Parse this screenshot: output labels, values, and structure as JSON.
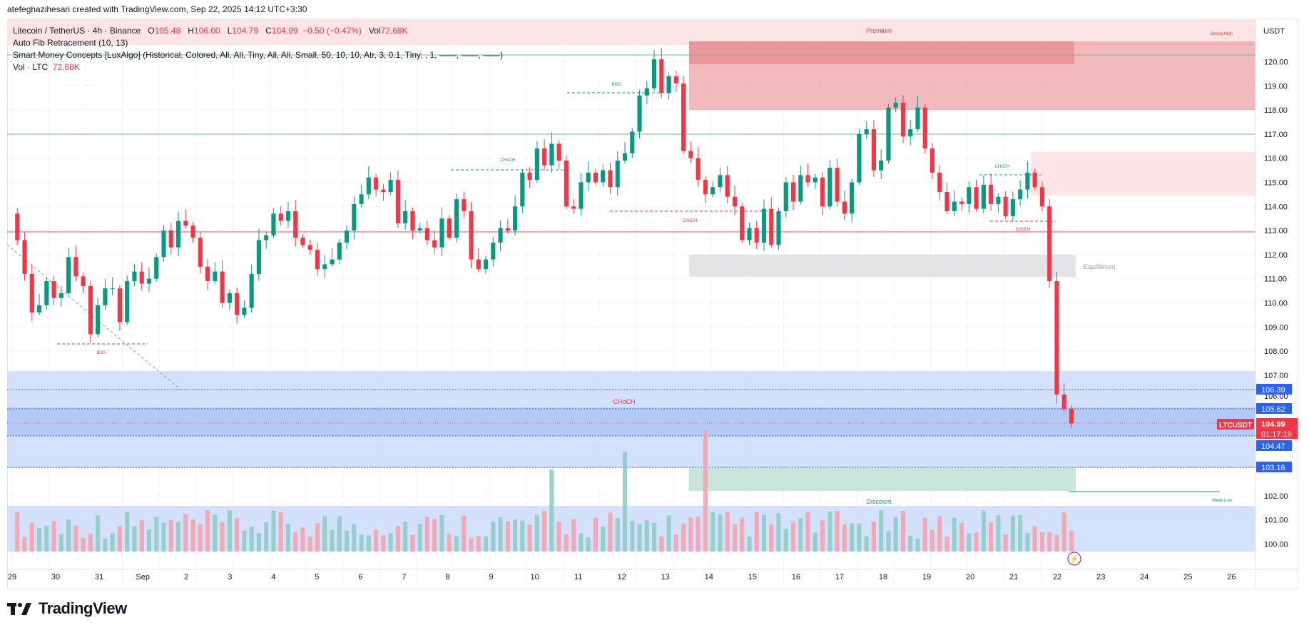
{
  "credit": "atefeghazihesari created with TradingView.com, Sep 22, 2025 14:12 UTC+3:30",
  "legend": {
    "symbol": "Litecoin / TetherUS · 4h · Binance",
    "o_label": "O",
    "o": "105.48",
    "h_label": "H",
    "h": "106.00",
    "l_label": "L",
    "l": "104.79",
    "c_label": "C",
    "c": "104.99",
    "change": "−0.50 (−0.47%)",
    "vol_label": "Vol",
    "vol": "72.68K",
    "indicator_fib": "Auto Fib Retracement (10, 13)",
    "indicator_smc": "Smart Money Concepts [LuxAlgo] (Historical, Colored, All, All, Tiny, All, All, Small, 50, 10, 10, Atr, 3, 0.1, Tiny, , 1, ——, ——, ——)",
    "vol_ltc_label": "Vol · LTC",
    "vol_ltc_value": "72.68K"
  },
  "currency": "USDT",
  "footer_brand": "TradingView",
  "colors": {
    "up": "#089981",
    "down": "#f23645",
    "vol_up": "#8fcdc4",
    "vol_down": "#f5a3ab",
    "premium_zone": "#fde5e6",
    "premium_block": "#ec9ca1",
    "discount_zone": "#c8e6dc",
    "equilibrium": "#e3e3e5",
    "blue_zone": "#cddcfb",
    "blue_dark": "#adc4f5",
    "green_line": "#6fbf73",
    "red_line": "#e14c4c",
    "axis_label_blue": "#2962ff",
    "price_tag": "#f23645"
  },
  "annotations": {
    "premium": "Premium",
    "strong_high": "Strong High",
    "equilibrium": "Equilibrium",
    "discount": "Discount",
    "weak_low": "Weak Low",
    "choch_big": "CHoCH",
    "bos_1": "BOS",
    "bos_2": "BOS",
    "choch_1": "CHoCH",
    "choch_2": "CHoCH",
    "choch_3": "CHoCH",
    "choch_4": "CHoCH"
  },
  "price_axis": {
    "ticks": [
      "120.00",
      "119.00",
      "118.00",
      "117.00",
      "116.00",
      "115.00",
      "114.00",
      "113.00",
      "112.00",
      "111.00",
      "110.00",
      "109.00",
      "108.00",
      "107.00",
      "106.00",
      "102.00",
      "101.00",
      "100.00"
    ],
    "tags": [
      {
        "label": "106.39",
        "kind": "blue"
      },
      {
        "label": "105.62",
        "kind": "blue"
      },
      {
        "label": "104.47",
        "kind": "blue"
      },
      {
        "label": "103.16",
        "kind": "blue"
      }
    ],
    "current": {
      "symbol": "LTCUSDT",
      "price": "104.99",
      "countdown": "01:17:19"
    }
  },
  "time_axis": {
    "ticks": [
      "29",
      "30",
      "31",
      "Sep",
      "2",
      "3",
      "4",
      "5",
      "6",
      "7",
      "8",
      "9",
      "10",
      "11",
      "12",
      "13",
      "14",
      "15",
      "16",
      "17",
      "18",
      "19",
      "20",
      "21",
      "22",
      "23",
      "24",
      "25",
      "26"
    ]
  }
}
